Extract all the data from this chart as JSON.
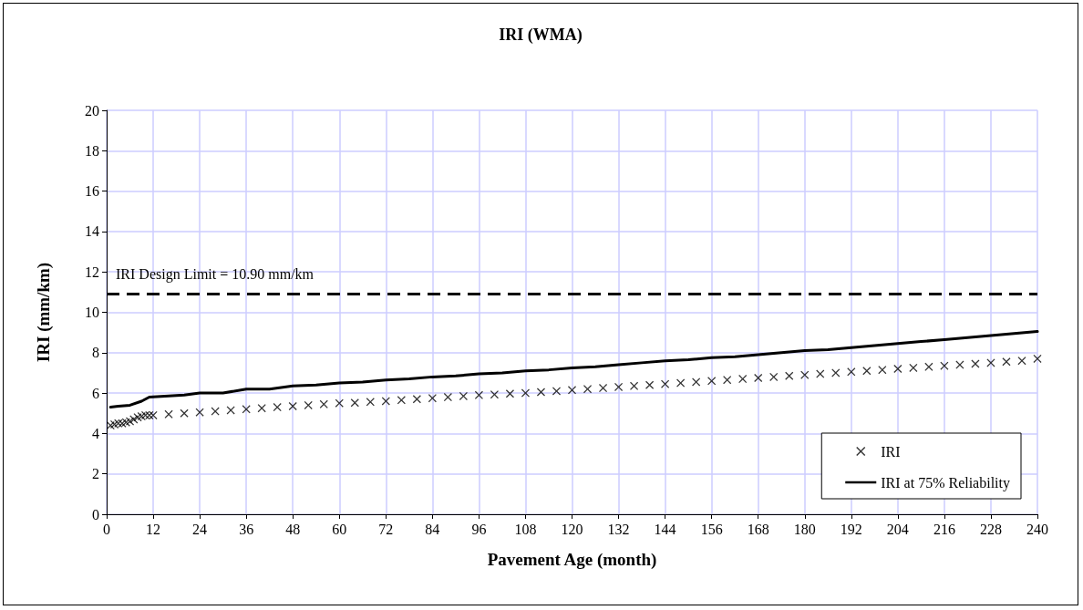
{
  "chart_data": {
    "type": "line",
    "title": "IRI (WMA)",
    "xlabel": "Pavement Age (month)",
    "ylabel": "IRI (mm/km)",
    "xlim": [
      0,
      240
    ],
    "xticks": [
      0,
      12,
      24,
      36,
      48,
      60,
      72,
      84,
      96,
      108,
      120,
      132,
      144,
      156,
      168,
      180,
      192,
      204,
      216,
      228,
      240
    ],
    "ylim": [
      0,
      20
    ],
    "yticks": [
      0,
      2,
      4,
      6,
      8,
      10,
      12,
      14,
      16,
      18,
      20
    ],
    "grid": true,
    "legend": "bottom right",
    "series": [
      {
        "name": "IRI",
        "type": "scatter",
        "marker": "cross",
        "color": "#000000",
        "x": [
          1,
          2,
          3,
          4,
          5,
          6,
          7,
          8,
          9,
          10,
          11,
          12,
          16,
          20,
          24,
          28,
          32,
          36,
          40,
          44,
          48,
          52,
          56,
          60,
          64,
          68,
          72,
          76,
          80,
          84,
          88,
          92,
          96,
          100,
          104,
          108,
          112,
          116,
          120,
          124,
          128,
          132,
          136,
          140,
          144,
          148,
          152,
          156,
          160,
          164,
          168,
          172,
          176,
          180,
          184,
          188,
          192,
          196,
          200,
          204,
          208,
          212,
          216,
          220,
          224,
          228,
          232,
          236,
          240
        ],
        "values": [
          4.4,
          4.45,
          4.5,
          4.5,
          4.55,
          4.6,
          4.7,
          4.8,
          4.85,
          4.9,
          4.9,
          4.9,
          4.95,
          5.0,
          5.05,
          5.1,
          5.15,
          5.2,
          5.25,
          5.3,
          5.35,
          5.4,
          5.45,
          5.5,
          5.52,
          5.56,
          5.6,
          5.65,
          5.7,
          5.75,
          5.8,
          5.85,
          5.9,
          5.93,
          5.97,
          6.0,
          6.05,
          6.1,
          6.15,
          6.2,
          6.25,
          6.3,
          6.35,
          6.4,
          6.45,
          6.5,
          6.55,
          6.6,
          6.65,
          6.7,
          6.75,
          6.8,
          6.85,
          6.9,
          6.95,
          7.0,
          7.05,
          7.1,
          7.15,
          7.2,
          7.25,
          7.3,
          7.35,
          7.4,
          7.45,
          7.5,
          7.55,
          7.6,
          7.7
        ]
      },
      {
        "name": "IRI at 75% Reliability",
        "marker": "none",
        "line_style": "solid",
        "color": "#000000",
        "x": [
          1,
          3,
          6,
          9,
          11,
          15,
          20,
          24,
          30,
          36,
          42,
          48,
          54,
          60,
          66,
          72,
          78,
          84,
          90,
          96,
          102,
          108,
          114,
          120,
          126,
          132,
          138,
          144,
          150,
          156,
          162,
          168,
          174,
          180,
          186,
          192,
          198,
          204,
          210,
          216,
          222,
          228,
          234,
          240
        ],
        "values": [
          5.3,
          5.35,
          5.4,
          5.6,
          5.8,
          5.85,
          5.9,
          6.0,
          6.0,
          6.2,
          6.2,
          6.35,
          6.4,
          6.5,
          6.55,
          6.65,
          6.7,
          6.8,
          6.85,
          6.95,
          7.0,
          7.1,
          7.15,
          7.25,
          7.3,
          7.4,
          7.5,
          7.6,
          7.65,
          7.75,
          7.8,
          7.9,
          8.0,
          8.1,
          8.15,
          8.25,
          8.35,
          8.45,
          8.55,
          8.65,
          8.75,
          8.85,
          8.95,
          9.05
        ]
      }
    ],
    "ref_lines": [
      {
        "axis": "y",
        "value": 10.9,
        "label": "IRI Design Limit = 10.90 mm/km",
        "line_style": "dashed",
        "color": "#000000"
      }
    ]
  }
}
